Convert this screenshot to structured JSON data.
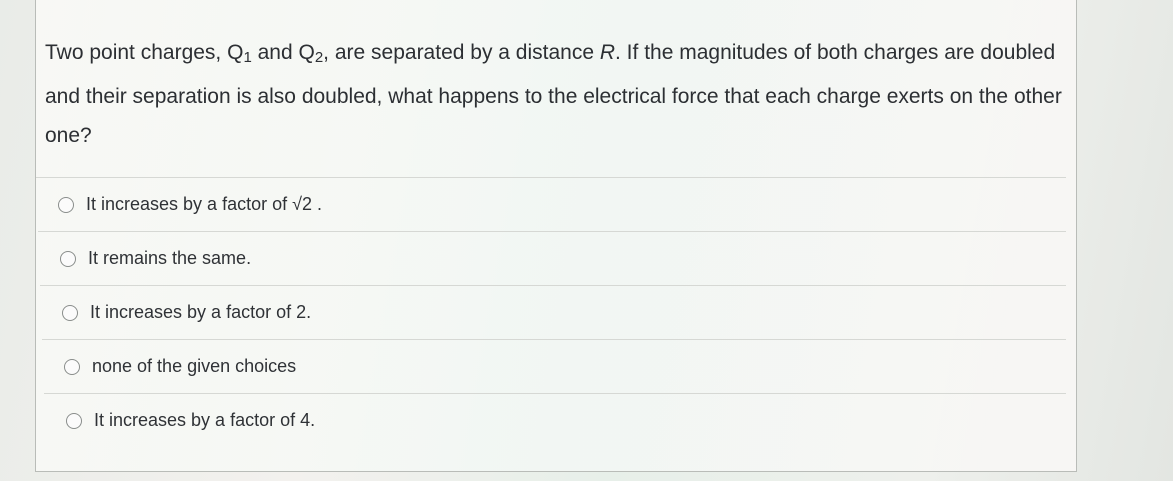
{
  "question": {
    "parts": [
      "Two point charges, Q",
      "1",
      " and Q",
      "2",
      ", are separated by a distance ",
      "R",
      ". If the magnitudes of both charges are doubled and their separation is also doubled, what happens to the electrical force that each charge exerts on the other one?"
    ]
  },
  "options": [
    "It increases by a factor of √2 .",
    "It remains the same.",
    "It increases by a factor of 2.",
    "none of the given choices",
    "It increases by a factor of 4."
  ]
}
